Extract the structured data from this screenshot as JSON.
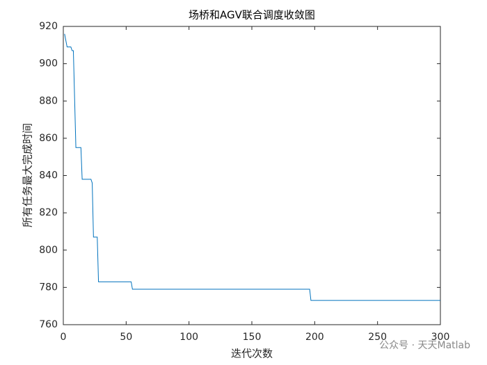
{
  "chart_data": {
    "type": "line",
    "title": "场桥和AGV联合调度收敛图",
    "x_label": "迭代次数",
    "y_label": "所有任务最大完成时间",
    "x": [
      1,
      3,
      6,
      7,
      8,
      10,
      14,
      15,
      22,
      23,
      24,
      27,
      28,
      54,
      55,
      196,
      197,
      300
    ],
    "series": [
      {
        "color": "#0072bd",
        "values": [
          916,
          909,
          909,
          907,
          907,
          855,
          855,
          838,
          838,
          836,
          807,
          807,
          783,
          783,
          779,
          779,
          773,
          773
        ]
      }
    ],
    "xlim": [
      0,
      300
    ],
    "xticks": [
      0,
      50,
      100,
      150,
      200,
      250,
      300
    ],
    "ylim": [
      760,
      920
    ],
    "yticks": [
      760,
      780,
      800,
      820,
      840,
      860,
      880,
      900,
      920
    ],
    "grid": false,
    "watermark": "公众号 · 天天Matlab"
  }
}
